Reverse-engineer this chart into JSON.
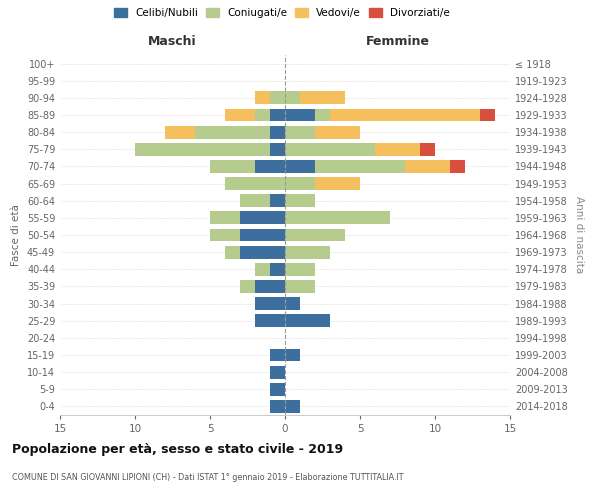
{
  "age_groups": [
    "0-4",
    "5-9",
    "10-14",
    "15-19",
    "20-24",
    "25-29",
    "30-34",
    "35-39",
    "40-44",
    "45-49",
    "50-54",
    "55-59",
    "60-64",
    "65-69",
    "70-74",
    "75-79",
    "80-84",
    "85-89",
    "90-94",
    "95-99",
    "100+"
  ],
  "birth_years": [
    "2014-2018",
    "2009-2013",
    "2004-2008",
    "1999-2003",
    "1994-1998",
    "1989-1993",
    "1984-1988",
    "1979-1983",
    "1974-1978",
    "1969-1973",
    "1964-1968",
    "1959-1963",
    "1954-1958",
    "1949-1953",
    "1944-1948",
    "1939-1943",
    "1934-1938",
    "1929-1933",
    "1924-1928",
    "1919-1923",
    "≤ 1918"
  ],
  "males": {
    "celibi": [
      1,
      1,
      1,
      1,
      0,
      2,
      2,
      2,
      1,
      3,
      3,
      3,
      1,
      0,
      2,
      1,
      1,
      1,
      0,
      0,
      0
    ],
    "coniugati": [
      0,
      0,
      0,
      0,
      0,
      0,
      0,
      1,
      1,
      1,
      2,
      2,
      2,
      4,
      3,
      9,
      5,
      1,
      1,
      0,
      0
    ],
    "vedovi": [
      0,
      0,
      0,
      0,
      0,
      0,
      0,
      0,
      0,
      0,
      0,
      0,
      0,
      0,
      0,
      0,
      2,
      2,
      1,
      0,
      0
    ],
    "divorziati": [
      0,
      0,
      0,
      0,
      0,
      0,
      0,
      0,
      0,
      0,
      0,
      0,
      0,
      0,
      0,
      0,
      0,
      0,
      0,
      0,
      0
    ]
  },
  "females": {
    "nubili": [
      1,
      0,
      0,
      1,
      0,
      3,
      1,
      0,
      0,
      0,
      0,
      0,
      0,
      0,
      2,
      0,
      0,
      2,
      0,
      0,
      0
    ],
    "coniugate": [
      0,
      0,
      0,
      0,
      0,
      0,
      0,
      2,
      2,
      3,
      4,
      7,
      2,
      2,
      6,
      6,
      2,
      1,
      1,
      0,
      0
    ],
    "vedove": [
      0,
      0,
      0,
      0,
      0,
      0,
      0,
      0,
      0,
      0,
      0,
      0,
      0,
      3,
      3,
      3,
      3,
      10,
      3,
      0,
      0
    ],
    "divorziate": [
      0,
      0,
      0,
      0,
      0,
      0,
      0,
      0,
      0,
      0,
      0,
      0,
      0,
      0,
      1,
      1,
      0,
      1,
      0,
      0,
      0
    ]
  },
  "colors": {
    "celibi": "#3d6f9e",
    "coniugati": "#b5cc8e",
    "vedovi": "#f5bf5d",
    "divorziati": "#d94f3d"
  },
  "xlim": 15,
  "title": "Popolazione per età, sesso e stato civile - 2019",
  "subtitle": "COMUNE DI SAN GIOVANNI LIPIONI (CH) - Dati ISTAT 1° gennaio 2019 - Elaborazione TUTTITALIA.IT",
  "ylabel_left": "Fasce di età",
  "ylabel_right": "Anni di nascita",
  "xlabel_left": "Maschi",
  "xlabel_right": "Femmine",
  "legend_labels": [
    "Celibi/Nubili",
    "Coniugati/e",
    "Vedovi/e",
    "Divorziati/e"
  ]
}
